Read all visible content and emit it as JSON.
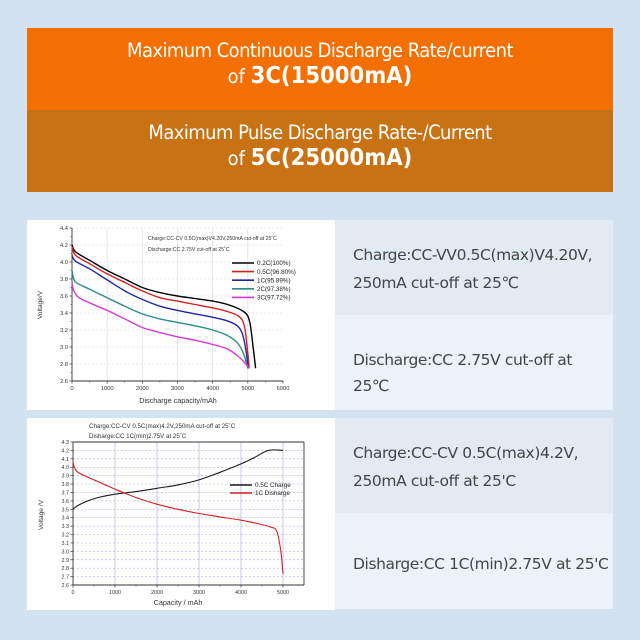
{
  "banners": [
    {
      "line1": "Maximum Continuous Discharge Rate/current",
      "line2_prefix": "of ",
      "line2_value": "3C(15000mA)",
      "color": "#f46f02"
    },
    {
      "line1": "Maximum Pulse Discharge Rate-/Current",
      "line2_prefix": "of ",
      "line2_value": "5C(25000mA)",
      "color": "#c97214"
    }
  ],
  "descriptions": [
    {
      "line1": "Charge:CC-VV0.5C(max)V4.20V,",
      "line2": "250mA cut-off at 25℃"
    },
    {
      "line1": "Discharge:CC 2.75V cut-off at 25℃"
    },
    {
      "line1": "Charge:CC-CV 0.5C(max)4.2V,",
      "line2": "250mA cut-off at 25'C"
    },
    {
      "line1": "Disharge:CC 1C(min)2.75V at 25'C"
    }
  ],
  "chart_data": [
    {
      "type": "line",
      "title": "",
      "annotations": [
        "Charge:CC-CV 0.5C(max)V4.20V,250mA cut-off at 25˚C",
        "Discharge:CC 2.75V cut-off at 25˚C"
      ],
      "xlabel": "Discharge capacity/mAh",
      "ylabel": "Voltage/V",
      "xlim": [
        0,
        6000
      ],
      "ylim": [
        2.6,
        4.4
      ],
      "xticks": [
        "0",
        "1000",
        "2000",
        "3000",
        "4000",
        "5000",
        "6000"
      ],
      "yticks": [
        "2.6",
        "2.8",
        "3.0",
        "3.2",
        "3.4",
        "3.6",
        "3.8",
        "4.0",
        "4.2",
        "4.4"
      ],
      "grid": true,
      "legend_position": "right",
      "series": [
        {
          "name": "0.2C(100%)",
          "color": "#000000",
          "x": [
            0,
            100,
            500,
            1000,
            1500,
            2000,
            2500,
            3000,
            3500,
            4000,
            4500,
            4900,
            5050,
            5150,
            5220
          ],
          "y": [
            4.2,
            4.12,
            4.02,
            3.9,
            3.8,
            3.7,
            3.64,
            3.6,
            3.57,
            3.54,
            3.49,
            3.41,
            3.3,
            3.0,
            2.75
          ]
        },
        {
          "name": "0.5C(96.80%)",
          "color": "#d42020",
          "x": [
            0,
            100,
            500,
            1000,
            1500,
            2000,
            2500,
            3000,
            3500,
            4000,
            4400,
            4750,
            4900,
            4980,
            5040
          ],
          "y": [
            4.18,
            4.08,
            3.98,
            3.86,
            3.76,
            3.66,
            3.58,
            3.54,
            3.5,
            3.46,
            3.42,
            3.36,
            3.25,
            3.0,
            2.75
          ]
        },
        {
          "name": "1C(95.89%)",
          "color": "#2424a8",
          "x": [
            0,
            100,
            500,
            1000,
            1500,
            2000,
            2500,
            3000,
            3500,
            4000,
            4400,
            4700,
            4850,
            4950,
            5010
          ],
          "y": [
            4.08,
            4.01,
            3.92,
            3.79,
            3.66,
            3.56,
            3.48,
            3.43,
            3.39,
            3.35,
            3.31,
            3.25,
            3.15,
            2.95,
            2.75
          ]
        },
        {
          "name": "2C(97.38%)",
          "color": "#2a8c84",
          "x": [
            0,
            50,
            150,
            500,
            1000,
            1500,
            2000,
            2500,
            3000,
            3500,
            4000,
            4400,
            4700,
            4880,
            5000
          ],
          "y": [
            3.9,
            3.8,
            3.75,
            3.68,
            3.58,
            3.48,
            3.39,
            3.33,
            3.29,
            3.25,
            3.2,
            3.14,
            3.05,
            2.92,
            2.75
          ]
        },
        {
          "name": "3C(97.72%)",
          "color": "#d63ad6",
          "x": [
            0,
            50,
            200,
            500,
            1000,
            1500,
            2000,
            2500,
            3000,
            3500,
            4000,
            4400,
            4700,
            4900,
            5050
          ],
          "y": [
            3.76,
            3.66,
            3.58,
            3.52,
            3.43,
            3.33,
            3.23,
            3.17,
            3.12,
            3.08,
            3.03,
            2.98,
            2.9,
            2.82,
            2.75
          ]
        }
      ]
    },
    {
      "type": "line",
      "title": "",
      "annotations": [
        "Charge:CC-CV 0.5C(max)4.2V,250mA cut-off at 25˚C",
        "Disharge:CC 1C(min)2.75V  at 25˚C"
      ],
      "xlabel": "Capacity / mAh",
      "ylabel": "Voltage /V",
      "xlim": [
        0,
        5500
      ],
      "ylim": [
        2.6,
        4.3
      ],
      "xticks": [
        "0",
        "1000",
        "2000",
        "3000",
        "4000",
        "5000"
      ],
      "yticks": [
        "2.6",
        "2.7",
        "2.8",
        "2.9",
        "3.0",
        "3.1",
        "3.2",
        "3.3",
        "3.4",
        "3.5",
        "3.6",
        "3.7",
        "3.8",
        "3.9",
        "4.0",
        "4.1",
        "4.2",
        "4.3"
      ],
      "grid": true,
      "legend_position": "right",
      "series": [
        {
          "name": "0.5C Charge",
          "color": "#1a1a1a",
          "x": [
            0,
            100,
            300,
            600,
            1000,
            1500,
            2000,
            2500,
            3000,
            3500,
            4000,
            4300,
            4650,
            5000
          ],
          "y": [
            3.5,
            3.54,
            3.59,
            3.64,
            3.68,
            3.71,
            3.75,
            3.79,
            3.85,
            3.94,
            4.04,
            4.11,
            4.2,
            4.2
          ]
        },
        {
          "name": "1C Disharge",
          "color": "#d42020",
          "x": [
            0,
            50,
            150,
            500,
            1000,
            1500,
            2000,
            2500,
            3000,
            3500,
            4000,
            4400,
            4700,
            4850,
            4950,
            5000
          ],
          "y": [
            4.06,
            3.98,
            3.93,
            3.85,
            3.74,
            3.64,
            3.56,
            3.5,
            3.45,
            3.41,
            3.37,
            3.33,
            3.29,
            3.24,
            3.0,
            2.73
          ]
        }
      ]
    }
  ]
}
